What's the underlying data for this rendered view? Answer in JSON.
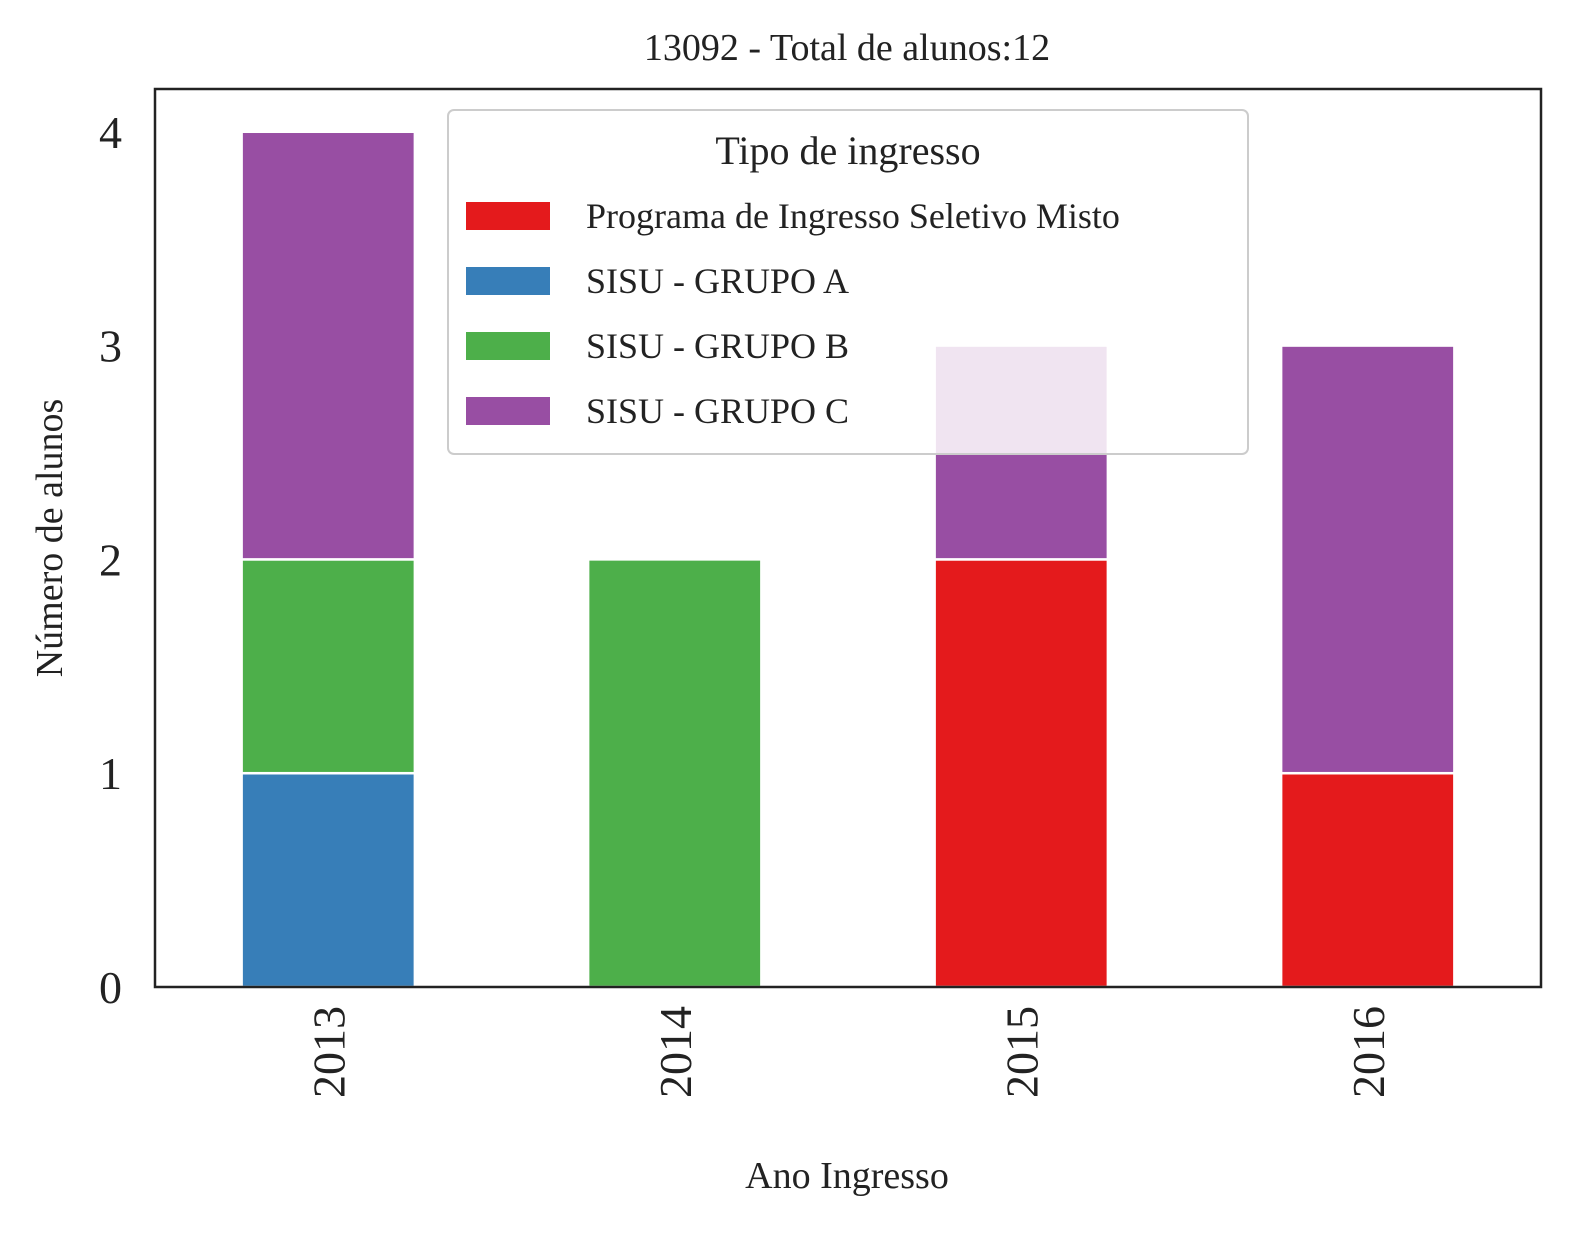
{
  "chart_data": {
    "type": "bar",
    "stacked": true,
    "title": "13092 - Total de alunos:12",
    "xlabel": "Ano Ingresso",
    "ylabel": "Número de alunos",
    "categories": [
      "2013",
      "2014",
      "2015",
      "2016"
    ],
    "ylim": [
      0,
      4.2
    ],
    "yticks": [
      0,
      1,
      2,
      3,
      4
    ],
    "grid": false,
    "legend": {
      "title": "Tipo de ingresso",
      "placement": "top-center"
    },
    "series": [
      {
        "name": "Programa de Ingresso Seletivo Misto",
        "color": "#e41a1c",
        "values": [
          0,
          0,
          2,
          1
        ]
      },
      {
        "name": "SISU - GRUPO A",
        "color": "#377eb8",
        "values": [
          1,
          0,
          0,
          0
        ]
      },
      {
        "name": "SISU - GRUPO B",
        "color": "#4daf4a",
        "values": [
          1,
          2,
          0,
          0
        ]
      },
      {
        "name": "SISU - GRUPO C",
        "color": "#984ea3",
        "values": [
          2,
          0,
          1,
          2
        ]
      }
    ]
  }
}
